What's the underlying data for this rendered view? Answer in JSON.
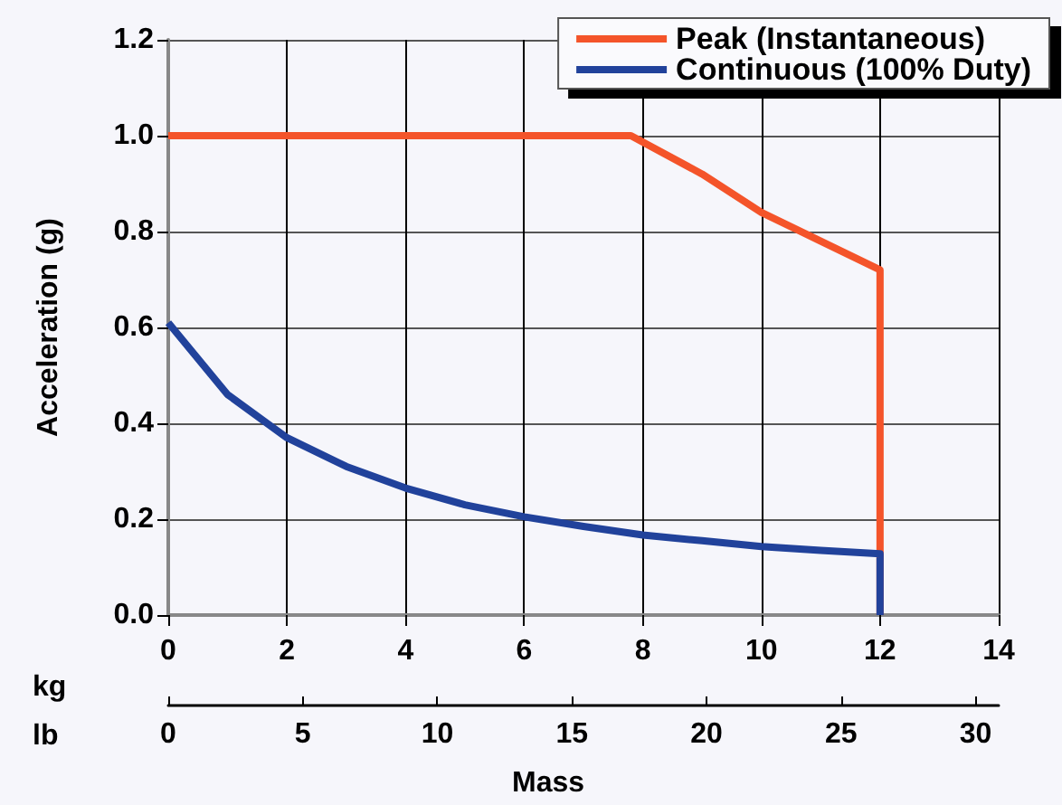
{
  "chart_data": {
    "type": "line",
    "xlabel": "Mass",
    "ylabel": "Acceleration (g)",
    "annotations": [
      "kg",
      "lb"
    ],
    "series": [
      {
        "name": "Peak (Instantaneous)",
        "color": "#f4542a",
        "x": [
          0,
          7.8,
          9,
          10,
          11,
          12,
          12
        ],
        "values": [
          1.0,
          1.0,
          0.92,
          0.84,
          0.78,
          0.72,
          0
        ]
      },
      {
        "name": "Continuous (100% Duty)",
        "color": "#21429b",
        "x": [
          0,
          1,
          2,
          3,
          4,
          5,
          6,
          7,
          8,
          9,
          10,
          11,
          12,
          12
        ],
        "values": [
          0.61,
          0.46,
          0.37,
          0.31,
          0.265,
          0.23,
          0.205,
          0.185,
          0.167,
          0.155,
          0.143,
          0.135,
          0.128,
          0
        ]
      }
    ],
    "xlim": [
      0,
      14
    ],
    "xticks": [
      0,
      2,
      4,
      6,
      8,
      10,
      12,
      14
    ],
    "x2lim": [
      0,
      30.86
    ],
    "x2ticks": [
      0,
      5,
      10,
      15,
      20,
      25,
      30
    ],
    "ylim": [
      0,
      1.2
    ],
    "yticks": [
      {
        "value": 0,
        "label": "0.0"
      },
      {
        "value": 0.2,
        "label": "0.2"
      },
      {
        "value": 0.4,
        "label": "0.4"
      },
      {
        "value": 0.6,
        "label": "0.6"
      },
      {
        "value": 0.8,
        "label": "0.8"
      },
      {
        "value": 1.0,
        "label": "1.0"
      },
      {
        "value": 1.2,
        "label": "1.2"
      }
    ],
    "grid": true,
    "legend": "top right",
    "marker": "none",
    "line_style": "solid"
  }
}
